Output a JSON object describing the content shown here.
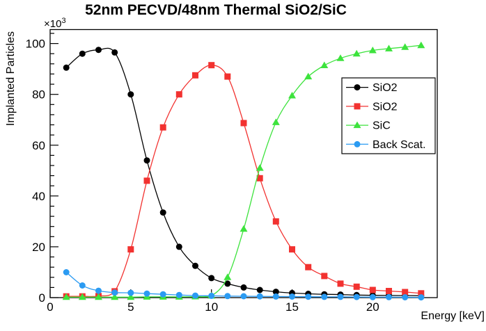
{
  "chart_data": {
    "type": "line",
    "title": "52nm PECVD/48nm Thermal SiO2/SiC",
    "xlabel": "Energy [keV]",
    "ylabel": "Implanted Particles",
    "y_multiplier_base": "×10",
    "y_multiplier_exp": "3",
    "xlim": [
      0,
      24
    ],
    "ylim": [
      0,
      105.5
    ],
    "x_ticks": [
      0,
      5,
      10,
      15,
      20
    ],
    "x_minor_step": 1,
    "y_ticks": [
      0,
      20,
      40,
      60,
      80,
      100
    ],
    "y_minor_step": 4,
    "grid": false,
    "legend_position": "right",
    "x": [
      1,
      2,
      3,
      4,
      5,
      6,
      7,
      8,
      9,
      10,
      11,
      12,
      13,
      14,
      15,
      16,
      17,
      18,
      19,
      20,
      21,
      22,
      23
    ],
    "series": [
      {
        "name": "SiO2",
        "marker": "circle",
        "color": "#000000",
        "values": [
          90.5,
          96,
          97.5,
          96.5,
          80,
          54,
          33.5,
          20,
          12.5,
          7.7,
          5.5,
          4,
          3,
          2.3,
          1.8,
          1.5,
          1.3,
          1.2,
          1.0,
          0.9,
          0.85,
          0.8,
          0.75
        ]
      },
      {
        "name": "SiO2",
        "marker": "square",
        "color": "#f23230",
        "values": [
          0.5,
          0.5,
          0.6,
          2.5,
          19,
          46,
          67,
          80,
          87.5,
          91.5,
          87,
          68.7,
          47,
          30,
          19,
          12,
          8.5,
          5.5,
          4.3,
          3.0,
          2.6,
          2.2,
          1.7
        ]
      },
      {
        "name": "SiC",
        "marker": "triangle",
        "color": "#3de33d",
        "values": [
          0.2,
          0.2,
          0.2,
          0.2,
          0.2,
          0.3,
          0.3,
          0.3,
          0.4,
          0.7,
          8,
          27,
          51,
          69,
          79.5,
          87,
          91.4,
          94.2,
          96,
          97.3,
          98,
          98.6,
          99.3
        ]
      },
      {
        "name": "Back Scat.",
        "marker": "circle",
        "color": "#2b9bf2",
        "values": [
          10,
          4.8,
          2.7,
          2.0,
          1.9,
          1.6,
          1.3,
          1.05,
          0.8,
          0.7,
          0.6,
          0.55,
          0.5,
          0.45,
          0.4,
          0.35,
          0.3,
          0.3,
          0.25,
          0.2,
          0.2,
          0.15,
          0.1
        ]
      }
    ]
  }
}
